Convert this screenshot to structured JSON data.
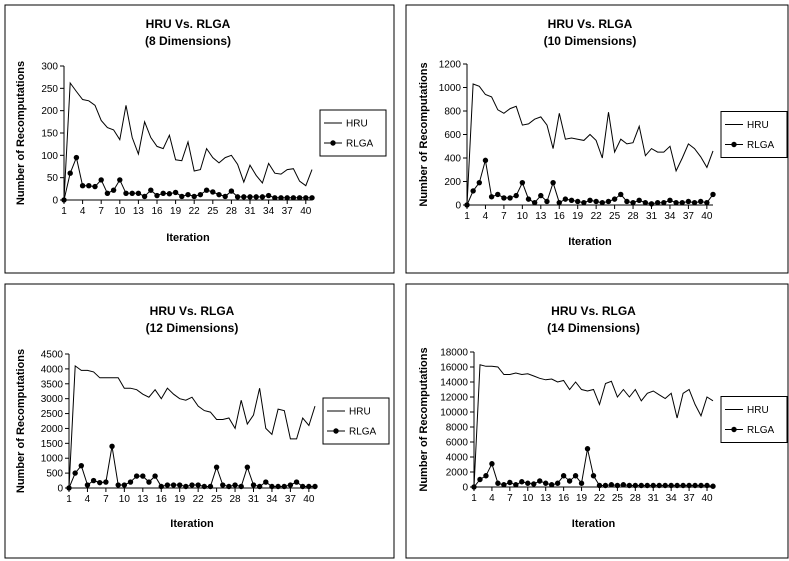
{
  "figure": {
    "chart_data": [
      {
        "type": "line",
        "title": "HRU Vs. RLGA",
        "subtitle": "(8 Dimensions)",
        "xlabel": "Iteration",
        "ylabel": "Number of Recomputations",
        "ylim": [
          0,
          300
        ],
        "yticks": [
          0,
          50,
          100,
          150,
          200,
          250,
          300
        ],
        "xticks": [
          1,
          4,
          7,
          10,
          13,
          16,
          19,
          22,
          25,
          28,
          31,
          34,
          37,
          40
        ],
        "x": [
          1,
          2,
          3,
          4,
          5,
          6,
          7,
          8,
          9,
          10,
          11,
          12,
          13,
          14,
          15,
          16,
          17,
          18,
          19,
          20,
          21,
          22,
          23,
          24,
          25,
          26,
          27,
          28,
          29,
          30,
          31,
          32,
          33,
          34,
          35,
          36,
          37,
          38,
          39,
          40,
          41
        ],
        "grid": false,
        "legend_position": "right",
        "series": [
          {
            "name": "HRU",
            "marker": "none",
            "values": [
              0,
              262,
              243,
              225,
              222,
              212,
              178,
              162,
              157,
              135,
              212,
              140,
              103,
              175,
              140,
              120,
              115,
              145,
              90,
              88,
              130,
              65,
              68,
              115,
              95,
              83,
              95,
              100,
              80,
              40,
              78,
              55,
              38,
              82,
              60,
              58,
              68,
              70,
              42,
              32,
              68
            ]
          },
          {
            "name": "RLGA",
            "marker": "circle",
            "values": [
              0,
              60,
              95,
              32,
              32,
              30,
              45,
              15,
              22,
              45,
              15,
              15,
              15,
              8,
              22,
              10,
              15,
              14,
              17,
              8,
              12,
              8,
              12,
              22,
              18,
              12,
              8,
              20,
              7,
              7,
              7,
              7,
              7,
              10,
              5,
              5,
              5,
              5,
              5,
              5,
              5
            ]
          }
        ]
      },
      {
        "type": "line",
        "title": "HRU Vs. RLGA",
        "subtitle": "(10 Dimensions)",
        "xlabel": "Iteration",
        "ylabel": "Number of Recomputations",
        "ylim": [
          0,
          1200
        ],
        "yticks": [
          0,
          200,
          400,
          600,
          800,
          1000,
          1200
        ],
        "xticks": [
          1,
          4,
          7,
          10,
          13,
          16,
          19,
          22,
          25,
          28,
          31,
          34,
          37,
          40
        ],
        "x": [
          1,
          2,
          3,
          4,
          5,
          6,
          7,
          8,
          9,
          10,
          11,
          12,
          13,
          14,
          15,
          16,
          17,
          18,
          19,
          20,
          21,
          22,
          23,
          24,
          25,
          26,
          27,
          28,
          29,
          30,
          31,
          32,
          33,
          34,
          35,
          36,
          37,
          38,
          39,
          40,
          41
        ],
        "grid": false,
        "legend_position": "right",
        "series": [
          {
            "name": "HRU",
            "marker": "none",
            "values": [
              0,
              1030,
              1010,
              940,
              920,
              810,
              780,
              820,
              840,
              680,
              690,
              730,
              750,
              680,
              480,
              780,
              560,
              570,
              560,
              550,
              600,
              550,
              400,
              790,
              450,
              560,
              520,
              530,
              670,
              420,
              480,
              450,
              450,
              500,
              290,
              400,
              520,
              480,
              410,
              320,
              460
            ]
          },
          {
            "name": "RLGA",
            "marker": "circle",
            "values": [
              0,
              120,
              190,
              380,
              70,
              90,
              60,
              60,
              80,
              190,
              50,
              20,
              80,
              30,
              190,
              20,
              50,
              40,
              30,
              20,
              40,
              30,
              20,
              30,
              50,
              90,
              30,
              20,
              40,
              20,
              10,
              20,
              20,
              40,
              20,
              20,
              30,
              20,
              30,
              20,
              90
            ]
          }
        ]
      },
      {
        "type": "line",
        "title": "HRU Vs. RLGA",
        "subtitle": "(12 Dimensions)",
        "xlabel": "Iteration",
        "ylabel": "Number of Recomputations",
        "ylim": [
          0,
          4500
        ],
        "yticks": [
          0,
          500,
          1000,
          1500,
          2000,
          2500,
          3000,
          3500,
          4000,
          4500
        ],
        "xticks": [
          1,
          4,
          7,
          10,
          13,
          16,
          19,
          22,
          25,
          28,
          31,
          34,
          37,
          40
        ],
        "x": [
          1,
          2,
          3,
          4,
          5,
          6,
          7,
          8,
          9,
          10,
          11,
          12,
          13,
          14,
          15,
          16,
          17,
          18,
          19,
          20,
          21,
          22,
          23,
          24,
          25,
          26,
          27,
          28,
          29,
          30,
          31,
          32,
          33,
          34,
          35,
          36,
          37,
          38,
          39,
          40,
          41
        ],
        "grid": false,
        "legend_position": "right",
        "series": [
          {
            "name": "HRU",
            "marker": "none",
            "values": [
              0,
              4100,
              3950,
              3950,
              3900,
              3700,
              3700,
              3700,
              3700,
              3350,
              3350,
              3300,
              3150,
              3050,
              3300,
              3000,
              3350,
              3150,
              3000,
              2950,
              3050,
              2750,
              2600,
              2550,
              2300,
              2300,
              2350,
              2000,
              2950,
              2150,
              2450,
              3350,
              2000,
              1800,
              2650,
              2600,
              1650,
              1650,
              2350,
              2100,
              2750
            ]
          },
          {
            "name": "RLGA",
            "marker": "circle",
            "values": [
              0,
              500,
              750,
              100,
              250,
              180,
              200,
              1400,
              100,
              100,
              200,
              400,
              400,
              200,
              400,
              50,
              100,
              100,
              100,
              50,
              100,
              100,
              50,
              50,
              700,
              100,
              50,
              100,
              50,
              700,
              100,
              50,
              200,
              50,
              50,
              50,
              100,
              200,
              50,
              50,
              50
            ]
          }
        ]
      },
      {
        "type": "line",
        "title": "HRU Vs. RLGA",
        "subtitle": "(14 Dimensions)",
        "xlabel": "Iteration",
        "ylabel": "Number of Recomputations",
        "ylim": [
          0,
          18000
        ],
        "yticks": [
          0,
          2000,
          4000,
          6000,
          8000,
          10000,
          12000,
          14000,
          16000,
          18000
        ],
        "xticks": [
          1,
          4,
          7,
          10,
          13,
          16,
          19,
          22,
          25,
          28,
          31,
          34,
          37,
          40
        ],
        "x": [
          1,
          2,
          3,
          4,
          5,
          6,
          7,
          8,
          9,
          10,
          11,
          12,
          13,
          14,
          15,
          16,
          17,
          18,
          19,
          20,
          21,
          22,
          23,
          24,
          25,
          26,
          27,
          28,
          29,
          30,
          31,
          32,
          33,
          34,
          35,
          36,
          37,
          38,
          39,
          40,
          41
        ],
        "grid": false,
        "legend_position": "right",
        "series": [
          {
            "name": "HRU",
            "marker": "none",
            "values": [
              0,
              16300,
              16100,
              16100,
              16000,
              15000,
              15000,
              15200,
              15000,
              15100,
              14800,
              14500,
              14300,
              14400,
              14000,
              14200,
              13000,
              14000,
              13000,
              12800,
              13000,
              11000,
              13800,
              14100,
              12000,
              13000,
              12000,
              13000,
              11500,
              12500,
              12800,
              12300,
              11800,
              12500,
              9200,
              12500,
              13000,
              11000,
              9500,
              12000,
              11500
            ]
          },
          {
            "name": "RLGA",
            "marker": "circle",
            "values": [
              0,
              1000,
              1500,
              3100,
              500,
              300,
              600,
              300,
              700,
              500,
              400,
              800,
              500,
              300,
              500,
              1500,
              800,
              1500,
              500,
              5100,
              1500,
              200,
              200,
              300,
              200,
              300,
              200,
              200,
              200,
              200,
              200,
              200,
              200,
              200,
              200,
              200,
              200,
              200,
              200,
              200,
              100
            ]
          }
        ]
      }
    ]
  }
}
